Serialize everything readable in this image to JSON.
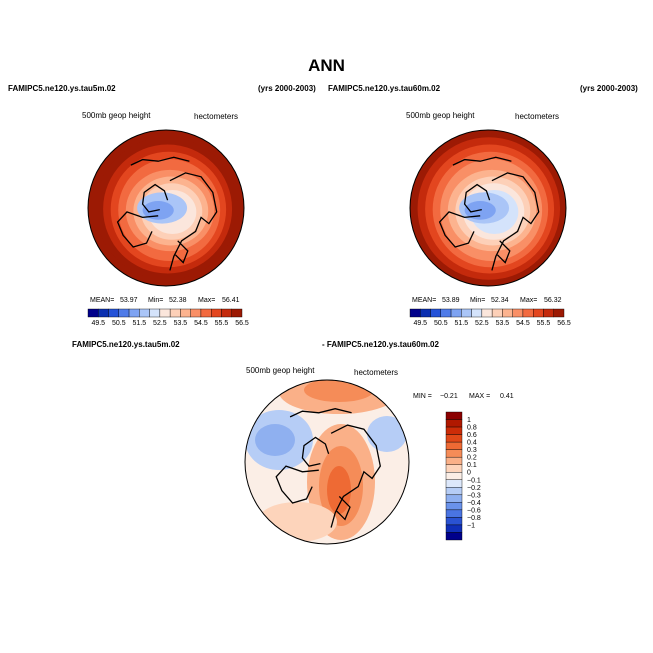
{
  "page": {
    "title": "ANN",
    "top_left_case": "FAMIPC5.ne120.ys.tau5m.02",
    "top_left_years": "(yrs 2000-2003)",
    "top_right_case": "FAMIPC5.ne120.ys.tau60m.02",
    "top_right_years": "(yrs 2000-2003)",
    "diff_left": "FAMIPC5.ne120.ys.tau5m.02",
    "diff_right": "- FAMIPC5.ne120.ys.tau60m.02"
  },
  "chart_data": [
    {
      "type": "heatmap",
      "projection": "north-polar-stereographic",
      "variable": "500mb geop height",
      "units": "hectometers",
      "stats": {
        "mean_label": "MEAN=",
        "mean": "53.97",
        "min_label": "Min=",
        "min": "52.38",
        "max_label": "Max=",
        "max": "56.41"
      },
      "levels": [
        "49.5",
        "50.5",
        "51.5",
        "52.5",
        "53.5",
        "54.5",
        "55.5",
        "56.5"
      ],
      "colors": [
        "#00008b",
        "#0a2fb0",
        "#2452d8",
        "#4f7be8",
        "#7ea3f2",
        "#aac5f7",
        "#d4e3fb",
        "#fbe6dc",
        "#fdd0b8",
        "#fcb38f",
        "#f98f66",
        "#f26a40",
        "#e3461f",
        "#c42a0c",
        "#9c1a04"
      ],
      "ring_values": [
        56.4,
        56.0,
        55.5,
        55.0,
        54.5,
        54.0,
        53.5,
        53.0,
        52.5
      ]
    },
    {
      "type": "heatmap",
      "projection": "north-polar-stereographic",
      "variable": "500mb geop height",
      "units": "hectometers",
      "stats": {
        "mean_label": "MEAN=",
        "mean": "53.89",
        "min_label": "Min=",
        "min": "52.34",
        "max_label": "Max=",
        "max": "56.32"
      },
      "levels": [
        "49.5",
        "50.5",
        "51.5",
        "52.5",
        "53.5",
        "54.5",
        "55.5",
        "56.5"
      ],
      "colors": [
        "#00008b",
        "#0a2fb0",
        "#2452d8",
        "#4f7be8",
        "#7ea3f2",
        "#aac5f7",
        "#d4e3fb",
        "#fbe6dc",
        "#fdd0b8",
        "#fcb38f",
        "#f98f66",
        "#f26a40",
        "#e3461f",
        "#c42a0c",
        "#9c1a04"
      ],
      "ring_values": [
        56.3,
        55.9,
        55.4,
        54.9,
        54.4,
        53.9,
        53.4,
        52.9,
        52.4
      ]
    },
    {
      "type": "heatmap",
      "projection": "north-polar-stereographic",
      "variable": "500mb geop height",
      "units": "hectometers",
      "stats": {
        "min_label": "MIN =",
        "min": "−0.21",
        "max_label": "MAX =",
        "max": "0.41"
      },
      "levels": [
        "1",
        "0.8",
        "0.6",
        "0.4",
        "0.3",
        "0.2",
        "0.1",
        "0",
        "−0.1",
        "−0.2",
        "−0.3",
        "−0.4",
        "−0.6",
        "−0.8",
        "−1"
      ],
      "colors": [
        "#8b0000",
        "#b01800",
        "#cc2c08",
        "#e04818",
        "#ee6a34",
        "#f58c58",
        "#fab088",
        "#fdd4bb",
        "#fbeee6",
        "#dde8fb",
        "#b6cdf6",
        "#8fb0f0",
        "#6a92ea",
        "#4a74e2",
        "#2a52d2",
        "#102fb8",
        "#00008b"
      ]
    }
  ]
}
